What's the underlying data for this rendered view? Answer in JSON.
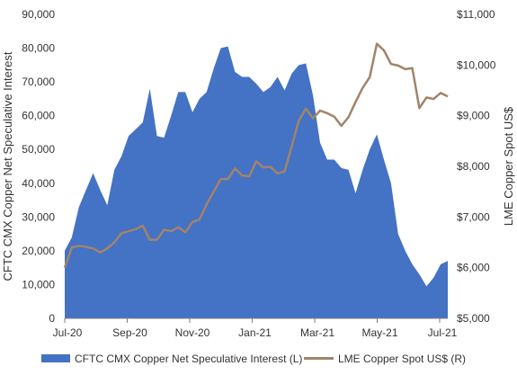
{
  "chart_data": {
    "type": "area",
    "x_tick_labels": [
      "Jul-20",
      "Sep-20",
      "Nov-20",
      "Jan-21",
      "Mar-21",
      "May-21",
      "Jul-21"
    ],
    "y_left": {
      "label": "CFTC CMX Copper Net Speculative Interest",
      "range": [
        0,
        90000
      ],
      "ticks": [
        "0",
        "10,000",
        "20,000",
        "30,000",
        "40,000",
        "50,000",
        "60,000",
        "70,000",
        "80,000",
        "90,000"
      ]
    },
    "y_right": {
      "label": "LME Copper Spot US$",
      "range": [
        5000,
        11000
      ],
      "ticks": [
        "$5,000",
        "$6,000",
        "$7,000",
        "$8,000",
        "$9,000",
        "$10,000",
        "$11,000"
      ]
    },
    "colors": {
      "area": "#4472C4",
      "line": "#A1846A"
    },
    "series": [
      {
        "name": "CFTC CMX Copper Net Speculative Interest (L)",
        "type": "area",
        "axis": "left",
        "values": [
          20000,
          24000,
          33000,
          38000,
          43000,
          38000,
          33500,
          44000,
          48000,
          54000,
          56000,
          58000,
          68000,
          54000,
          53500,
          60000,
          67000,
          67000,
          61000,
          65000,
          67000,
          74000,
          80000,
          80500,
          73000,
          71500,
          71500,
          69500,
          67000,
          68500,
          71500,
          67500,
          72500,
          75000,
          75500,
          66000,
          52000,
          47000,
          47000,
          44500,
          44000,
          37000,
          44000,
          50000,
          54500,
          47000,
          40000,
          25000,
          20000,
          16000,
          13000,
          9500,
          12000,
          16000,
          17000
        ]
      },
      {
        "name": "LME Copper Spot US$ (R)",
        "type": "line",
        "axis": "right",
        "values": [
          6000,
          6400,
          6430,
          6410,
          6380,
          6300,
          6380,
          6500,
          6680,
          6720,
          6760,
          6830,
          6550,
          6550,
          6750,
          6720,
          6800,
          6700,
          6900,
          6950,
          7250,
          7500,
          7750,
          7750,
          7960,
          7820,
          7800,
          8100,
          7980,
          7990,
          7860,
          7900,
          8400,
          8900,
          9140,
          8950,
          9100,
          9050,
          8980,
          8800,
          8970,
          9270,
          9550,
          9760,
          10420,
          10290,
          10020,
          9990,
          9920,
          9940,
          9150,
          9360,
          9330,
          9450,
          9380
        ]
      }
    ],
    "legend_position": "bottom",
    "grid": false
  }
}
